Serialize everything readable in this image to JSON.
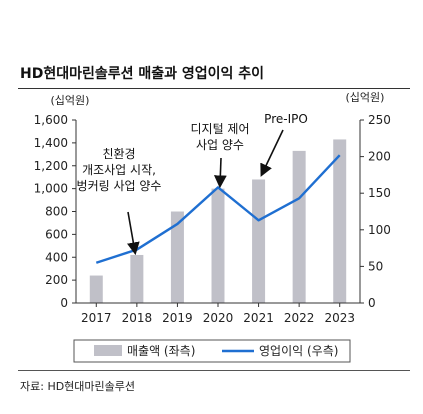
{
  "title": "HD현대마린솔루션 매출과 영업이익 추이",
  "source": "자료: HD현대마린솔루션",
  "chart_data": {
    "type": "bar",
    "categories": [
      "2017",
      "2018",
      "2019",
      "2020",
      "2021",
      "2022",
      "2023"
    ],
    "series": [
      {
        "name": "매출액 (좌측)",
        "type": "bar",
        "axis": "left",
        "color": "#c0c0c8",
        "values": [
          240,
          420,
          800,
          1000,
          1080,
          1330,
          1430
        ]
      },
      {
        "name": "영업이익 (우측)",
        "type": "line",
        "axis": "right",
        "color": "#1f6fd1",
        "values": [
          55,
          73,
          108,
          158,
          113,
          143,
          202
        ]
      }
    ],
    "left_axis": {
      "unit": "(십억원)",
      "ylim": [
        0,
        1600
      ],
      "ticks": [
        "0",
        "200",
        "400",
        "600",
        "800",
        "1,000",
        "1,200",
        "1,400",
        "1,600"
      ]
    },
    "right_axis": {
      "unit": "(십억원)",
      "ylim": [
        0,
        250
      ],
      "ticks": [
        "0",
        "50",
        "100",
        "150",
        "200",
        "250"
      ]
    },
    "legend_position": "bottom",
    "grid": false,
    "annotations": [
      {
        "lines": [
          "친환경",
          "개조사업 시작,",
          "벙커링 사업 양수"
        ],
        "target_category": "2018"
      },
      {
        "lines": [
          "디지털 제어",
          "사업 양수"
        ],
        "target_category": "2020"
      },
      {
        "lines": [
          "Pre-IPO"
        ],
        "target_category": "2021"
      }
    ]
  }
}
